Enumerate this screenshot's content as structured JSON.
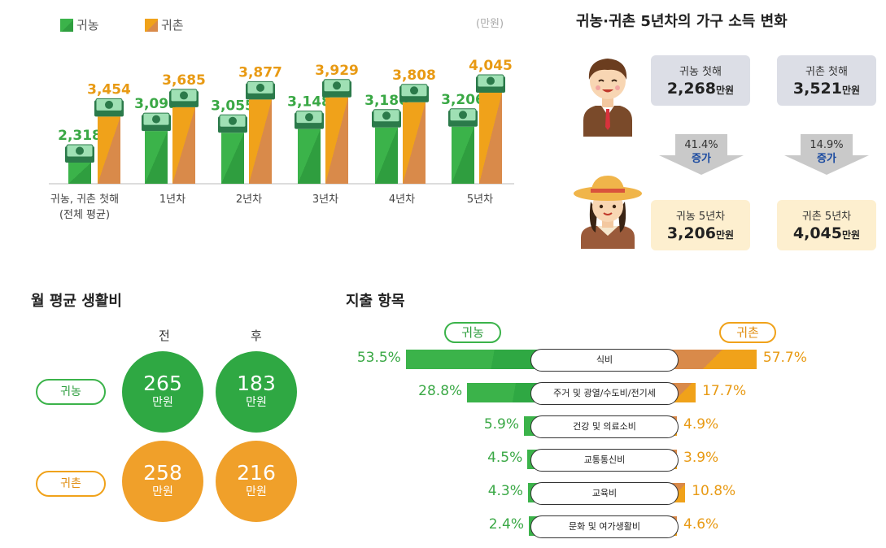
{
  "legend": {
    "farm": "귀농",
    "rural": "귀촌",
    "unit": "(만원)"
  },
  "colors": {
    "farm": "#3bb34a",
    "rural": "#f0a21a",
    "farm_dark": "#2f9e3f",
    "rural_dark": "#d98a4a"
  },
  "chart_data": [
    {
      "type": "bar",
      "categories": [
        "귀농, 귀촌 첫해\n(전체 평균)",
        "1년차",
        "2년차",
        "3년차",
        "4년차",
        "5년차"
      ],
      "series": [
        {
          "name": "귀농",
          "values": [
            2318,
            3099,
            3055,
            3148,
            3186,
            3206
          ],
          "labels": [
            "2,318",
            "3,099",
            "3,055",
            "3,148",
            "3,186",
            "3,206"
          ]
        },
        {
          "name": "귀촌",
          "values": [
            3454,
            3685,
            3877,
            3929,
            3808,
            4045
          ],
          "labels": [
            "3,454",
            "3,685",
            "3,877",
            "3,929",
            "3,808",
            "4,045"
          ]
        }
      ],
      "ylabel": "(만원)"
    },
    {
      "type": "bar",
      "categories": [
        "식비",
        "주거 및 광열/수도비/전기세",
        "건강 및 의료소비",
        "교통통신비",
        "교육비",
        "문화 및 여가생활비"
      ],
      "series": [
        {
          "name": "귀농",
          "values": [
            53.5,
            28.8,
            5.9,
            4.5,
            4.3,
            2.4
          ],
          "labels": [
            "53.5%",
            "28.8%",
            "5.9%",
            "4.5%",
            "4.3%",
            "2.4%"
          ]
        },
        {
          "name": "귀촌",
          "values": [
            57.7,
            17.7,
            4.9,
            3.9,
            10.8,
            4.6
          ],
          "labels": [
            "57.7%",
            "17.7%",
            "4.9%",
            "3.9%",
            "10.8%",
            "4.6%"
          ]
        }
      ]
    }
  ],
  "income": {
    "title": "귀농·귀촌 5년차의 가구 소득 변화",
    "farm_first_label": "귀농 첫해",
    "farm_first_value": "2,268",
    "unit": "만원",
    "rural_first_label": "귀촌 첫해",
    "rural_first_value": "3,521",
    "farm_change_pct": "41.4%",
    "rural_change_pct": "14.9%",
    "change_word": "증가",
    "farm_fifth_label": "귀농 5년차",
    "farm_fifth_value": "3,206",
    "rural_fifth_label": "귀촌 5년차",
    "rural_fifth_value": "4,045"
  },
  "living": {
    "title": "월 평균 생활비",
    "before": "전",
    "after": "후",
    "farm_label": "귀농",
    "rural_label": "귀촌",
    "farm_before": "265",
    "farm_after": "183",
    "rural_before": "258",
    "rural_after": "216",
    "unit": "만원"
  },
  "spending": {
    "title": "지출 항목",
    "farm_label": "귀농",
    "rural_label": "귀촌"
  }
}
